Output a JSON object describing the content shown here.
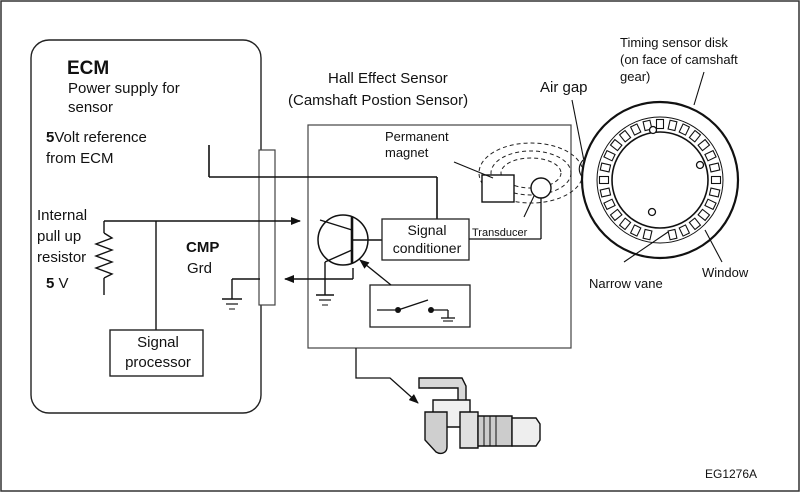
{
  "ecm": {
    "title": "ECM",
    "power_supply": "Power supply for sensor",
    "ref_num": "5",
    "ref_text_1": "Volt reference",
    "ref_text_2": "from ECM",
    "pullup": "Internal pull up resistor",
    "volt_num": "5",
    "volt_unit": "V",
    "cmp": "CMP",
    "grd": "Grd",
    "signal_processor": "Signal processor"
  },
  "sensor": {
    "title_1": "Hall Effect Sensor",
    "title_2": "(Camshaft Postion Sensor)",
    "magnet": "Permanent magnet",
    "signal_conditioner": "Signal conditioner",
    "transducer": "Transducer",
    "air_gap": "Air gap"
  },
  "disk": {
    "title_1": "Timing sensor disk",
    "title_2": "(on face of camshaft",
    "title_3": "gear)",
    "narrow_vane": "Narrow vane",
    "window": "Window"
  },
  "figure_code": "EG1276A"
}
